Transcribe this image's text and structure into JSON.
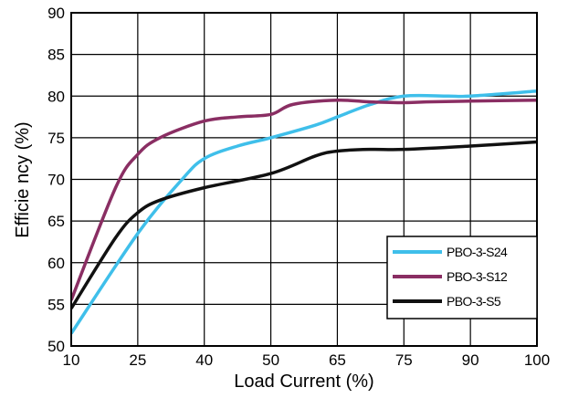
{
  "chart_data": {
    "type": "line",
    "xlabel": "Load Current (%)",
    "ylabel": "Efficie ncy (%)",
    "x_ticks": [
      "10",
      "25",
      "40",
      "50",
      "65",
      "75",
      "90",
      "100"
    ],
    "y_ticks": [
      50,
      55,
      60,
      65,
      70,
      75,
      80,
      85,
      90
    ],
    "ylim": [
      50,
      90
    ],
    "grid": true,
    "legend_position": "bottom-right",
    "series": [
      {
        "name": "PBO-3-S24",
        "color": "#3fbfea",
        "points": [
          [
            10,
            51.5
          ],
          [
            25,
            63.5
          ],
          [
            35,
            70
          ],
          [
            40,
            72.5
          ],
          [
            45,
            74
          ],
          [
            50,
            75
          ],
          [
            60,
            76.5
          ],
          [
            65,
            77.5
          ],
          [
            70,
            79
          ],
          [
            75,
            80
          ],
          [
            85,
            80
          ],
          [
            90,
            80
          ],
          [
            100,
            80.6
          ]
        ]
      },
      {
        "name": "PBO-3-S12",
        "color": "#8a2e63",
        "points": [
          [
            10,
            55.5
          ],
          [
            20,
            69
          ],
          [
            25,
            73
          ],
          [
            30,
            75
          ],
          [
            40,
            77
          ],
          [
            45,
            77.5
          ],
          [
            50,
            77.8
          ],
          [
            55,
            79
          ],
          [
            65,
            79.5
          ],
          [
            70,
            79.3
          ],
          [
            75,
            79.2
          ],
          [
            80,
            79.3
          ],
          [
            90,
            79.4
          ],
          [
            100,
            79.5
          ]
        ]
      },
      {
        "name": "PBO-3-S5",
        "color": "#111111",
        "points": [
          [
            10,
            54.5
          ],
          [
            20,
            63
          ],
          [
            25,
            66
          ],
          [
            30,
            67.5
          ],
          [
            40,
            69
          ],
          [
            50,
            70.7
          ],
          [
            60,
            72.8
          ],
          [
            65,
            73.4
          ],
          [
            70,
            73.6
          ],
          [
            75,
            73.6
          ],
          [
            90,
            74
          ],
          [
            100,
            74.5
          ]
        ]
      }
    ]
  }
}
